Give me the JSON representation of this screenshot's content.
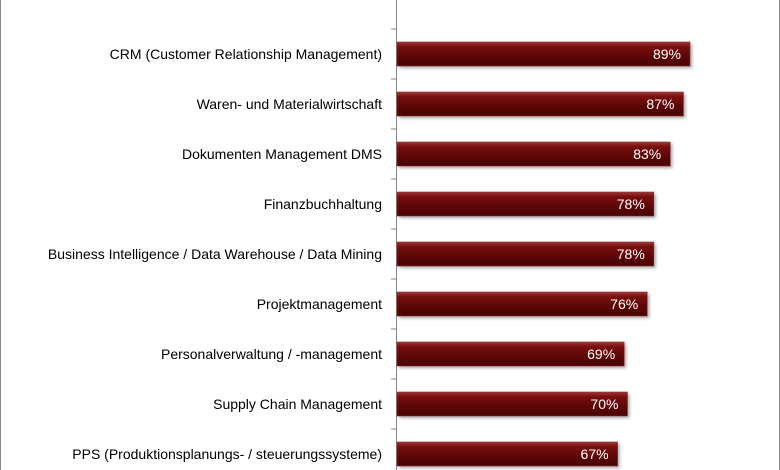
{
  "chart_data": {
    "type": "bar",
    "orientation": "horizontal",
    "categories": [
      "CRM (Customer Relationship Management)",
      "Waren- und Materialwirtschaft",
      "Dokumenten Management DMS",
      "Finanzbuchhaltung",
      "Business Intelligence / Data Warehouse / Data Mining",
      "Projektmanagement",
      "Personalverwaltung / -management",
      "Supply Chain Management",
      "PPS (Produktionsplanungs- / steuerungssysteme)"
    ],
    "values": [
      89,
      87,
      83,
      78,
      78,
      76,
      69,
      70,
      67
    ],
    "value_labels": [
      "89%",
      "87%",
      "83%",
      "78%",
      "78%",
      "76%",
      "69%",
      "70%",
      "67%"
    ],
    "unit": "%",
    "xlim": [
      0,
      100
    ],
    "bar_color": "#6b0a0a",
    "grid": false,
    "title": "",
    "xlabel": "",
    "ylabel": ""
  }
}
